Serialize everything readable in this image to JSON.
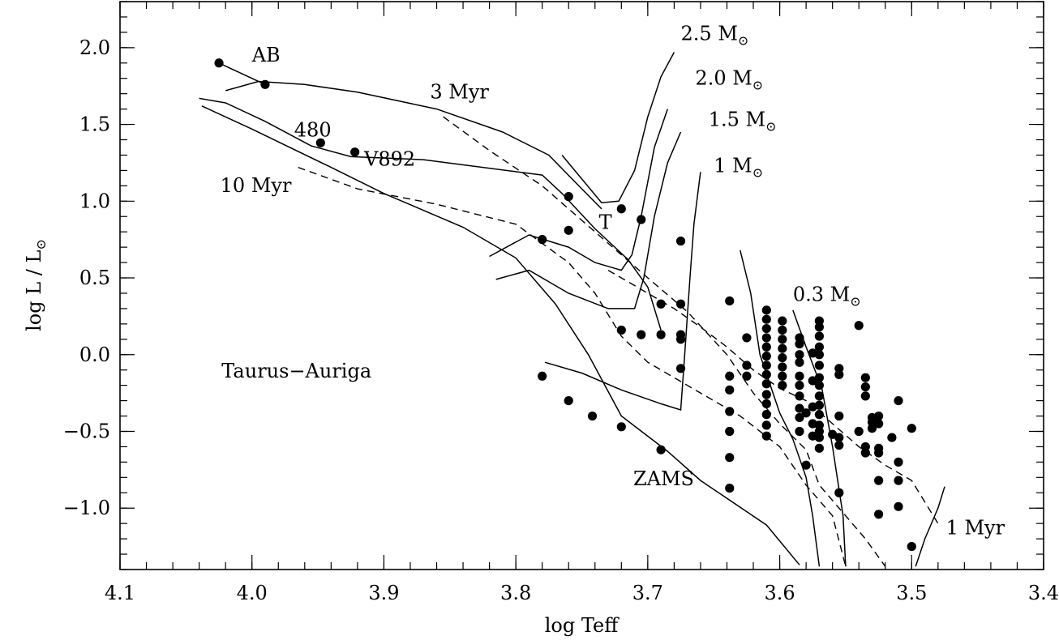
{
  "chart_data": {
    "type": "scatter",
    "title": "",
    "xlabel": "log Teff",
    "ylabel": "log L / L",
    "ylabel_symbol": "⊙",
    "xlim": [
      4.1,
      3.4
    ],
    "ylim": [
      -1.4,
      2.3
    ],
    "x_axis_reversed": true,
    "x_ticks": [
      4.1,
      4.0,
      3.9,
      3.8,
      3.7,
      3.6,
      3.5,
      3.4
    ],
    "x_tick_labels": [
      "4.1",
      "4.0",
      "3.9",
      "3.8",
      "3.7",
      "3.6",
      "3.5",
      "3.4"
    ],
    "x_minor_step": 0.02,
    "y_ticks": [
      -1.0,
      -0.5,
      0.0,
      0.5,
      1.0,
      1.5,
      2.0
    ],
    "y_tick_labels": [
      "−1.0",
      "−0.5",
      "0.0",
      "0.5",
      "1.0",
      "1.5",
      "2.0"
    ],
    "y_minor_step": 0.1,
    "grid": false,
    "annotations": [
      {
        "text": "AB",
        "x": 4.0,
        "y": 1.91
      },
      {
        "text": "480",
        "x": 3.968,
        "y": 1.42
      },
      {
        "text": "V892",
        "x": 3.915,
        "y": 1.23
      },
      {
        "text": "3 Myr",
        "x": 3.865,
        "y": 1.67
      },
      {
        "text": "10 Myr",
        "x": 4.024,
        "y": 1.06
      },
      {
        "text": "T",
        "x": 3.737,
        "y": 0.82
      },
      {
        "text": "Taurus−Auriga",
        "x": 4.023,
        "y": -0.15
      },
      {
        "text": "ZAMS",
        "x": 3.711,
        "y": -0.85
      },
      {
        "text": "1 Myr",
        "x": 3.474,
        "y": -1.17
      },
      {
        "text": "2.5 M",
        "x": 3.675,
        "y": 2.05,
        "symbol": "⊙"
      },
      {
        "text": "2.0 M",
        "x": 3.664,
        "y": 1.76,
        "symbol": "⊙"
      },
      {
        "text": "1.5 M",
        "x": 3.654,
        "y": 1.49,
        "symbol": "⊙"
      },
      {
        "text": "1 M",
        "x": 3.65,
        "y": 1.19,
        "symbol": "⊙"
      },
      {
        "text": "0.3 M",
        "x": 3.59,
        "y": 0.35,
        "symbol": "⊙"
      }
    ],
    "series": [
      {
        "type": "scatter",
        "points": [
          [
            4.025,
            1.9
          ],
          [
            3.99,
            1.76
          ],
          [
            3.948,
            1.38
          ],
          [
            3.922,
            1.32
          ],
          [
            3.76,
            1.03
          ],
          [
            3.72,
            0.95
          ],
          [
            3.705,
            0.88
          ],
          [
            3.76,
            0.81
          ],
          [
            3.78,
            0.75
          ],
          [
            3.675,
            0.74
          ],
          [
            3.69,
            0.33
          ],
          [
            3.675,
            0.33
          ],
          [
            3.638,
            0.35
          ],
          [
            3.72,
            0.16
          ],
          [
            3.705,
            0.13
          ],
          [
            3.69,
            0.13
          ],
          [
            3.675,
            0.13
          ],
          [
            3.675,
            0.1
          ],
          [
            3.675,
            -0.09
          ],
          [
            3.78,
            -0.14
          ],
          [
            3.76,
            -0.3
          ],
          [
            3.742,
            -0.4
          ],
          [
            3.72,
            -0.47
          ],
          [
            3.69,
            -0.62
          ],
          [
            3.638,
            -0.14
          ],
          [
            3.638,
            -0.23
          ],
          [
            3.638,
            -0.37
          ],
          [
            3.638,
            -0.5
          ],
          [
            3.638,
            -0.67
          ],
          [
            3.638,
            -0.87
          ],
          [
            3.625,
            0.11
          ],
          [
            3.625,
            -0.07
          ],
          [
            3.625,
            -0.14
          ],
          [
            3.61,
            0.29
          ],
          [
            3.61,
            0.23
          ],
          [
            3.61,
            0.17
          ],
          [
            3.61,
            0.11
          ],
          [
            3.61,
            0.05
          ],
          [
            3.61,
            -0.01
          ],
          [
            3.61,
            -0.07
          ],
          [
            3.61,
            -0.13
          ],
          [
            3.61,
            -0.19
          ],
          [
            3.61,
            -0.26
          ],
          [
            3.61,
            -0.32
          ],
          [
            3.61,
            -0.39
          ],
          [
            3.61,
            -0.46
          ],
          [
            3.61,
            -0.53
          ],
          [
            3.598,
            0.22
          ],
          [
            3.598,
            0.16
          ],
          [
            3.598,
            0.1
          ],
          [
            3.598,
            0.04
          ],
          [
            3.598,
            -0.02
          ],
          [
            3.598,
            -0.08
          ],
          [
            3.598,
            -0.14
          ],
          [
            3.598,
            -0.2
          ],
          [
            3.585,
            0.11
          ],
          [
            3.585,
            0.07
          ],
          [
            3.585,
            0.0
          ],
          [
            3.585,
            -0.05
          ],
          [
            3.585,
            -0.14
          ],
          [
            3.585,
            -0.2
          ],
          [
            3.585,
            -0.27
          ],
          [
            3.585,
            -0.35
          ],
          [
            3.585,
            -0.41
          ],
          [
            3.585,
            -0.5
          ],
          [
            3.58,
            -0.38
          ],
          [
            3.58,
            -0.72
          ],
          [
            3.57,
            0.22
          ],
          [
            3.57,
            0.18
          ],
          [
            3.57,
            0.12
          ],
          [
            3.57,
            0.05
          ],
          [
            3.57,
            0.0
          ],
          [
            3.57,
            -0.07
          ],
          [
            3.57,
            -0.15
          ],
          [
            3.57,
            -0.2
          ],
          [
            3.57,
            -0.27
          ],
          [
            3.57,
            -0.33
          ],
          [
            3.57,
            -0.39
          ],
          [
            3.57,
            -0.46
          ],
          [
            3.57,
            -0.5
          ],
          [
            3.57,
            -0.54
          ],
          [
            3.57,
            -0.61
          ],
          [
            3.575,
            0.01
          ],
          [
            3.575,
            -0.17
          ],
          [
            3.575,
            -0.34
          ],
          [
            3.575,
            -0.45
          ],
          [
            3.575,
            -0.53
          ],
          [
            3.56,
            -0.52
          ],
          [
            3.555,
            -0.4
          ],
          [
            3.555,
            -0.09
          ],
          [
            3.555,
            -0.13
          ],
          [
            3.555,
            -0.54
          ],
          [
            3.555,
            -0.59
          ],
          [
            3.555,
            -0.9
          ],
          [
            3.54,
            0.19
          ],
          [
            3.54,
            -0.5
          ],
          [
            3.535,
            -0.15
          ],
          [
            3.535,
            -0.21
          ],
          [
            3.535,
            -0.27
          ],
          [
            3.535,
            -0.6
          ],
          [
            3.535,
            -0.64
          ],
          [
            3.53,
            -0.41
          ],
          [
            3.53,
            -0.44
          ],
          [
            3.53,
            -0.48
          ],
          [
            3.525,
            -0.4
          ],
          [
            3.525,
            -0.45
          ],
          [
            3.525,
            -0.61
          ],
          [
            3.525,
            -0.64
          ],
          [
            3.525,
            -0.82
          ],
          [
            3.525,
            -1.04
          ],
          [
            3.515,
            -0.54
          ],
          [
            3.51,
            -0.3
          ],
          [
            3.51,
            -0.7
          ],
          [
            3.51,
            -0.82
          ],
          [
            3.51,
            -0.99
          ],
          [
            3.5,
            -0.48
          ],
          [
            3.5,
            -1.25
          ]
        ]
      },
      {
        "name": "3 Myr",
        "type": "line",
        "style": "solid",
        "points": [
          [
            4.02,
            1.72
          ],
          [
            3.995,
            1.78
          ],
          [
            3.96,
            1.76
          ],
          [
            3.92,
            1.71
          ],
          [
            3.86,
            1.6
          ],
          [
            3.81,
            1.45
          ],
          [
            3.775,
            1.3
          ],
          [
            3.75,
            1.08
          ],
          [
            3.735,
            0.95
          ]
        ]
      },
      {
        "name": "10 Myr",
        "type": "line",
        "style": "solid",
        "points": [
          [
            4.04,
            1.67
          ],
          [
            4.02,
            1.64
          ],
          [
            3.99,
            1.52
          ],
          [
            3.955,
            1.36
          ],
          [
            3.925,
            1.29
          ],
          [
            3.87,
            1.27
          ],
          [
            3.78,
            1.17
          ],
          [
            3.765,
            1.05
          ],
          [
            3.74,
            0.82
          ],
          [
            3.715,
            0.62
          ],
          [
            3.7,
            0.44
          ],
          [
            3.69,
            0.16
          ]
        ]
      },
      {
        "name": "ZAMS",
        "type": "line",
        "style": "solid",
        "points": [
          [
            4.038,
            1.62
          ],
          [
            4.0,
            1.47
          ],
          [
            3.94,
            1.22
          ],
          [
            3.9,
            1.05
          ],
          [
            3.84,
            0.83
          ],
          [
            3.8,
            0.63
          ],
          [
            3.77,
            0.33
          ],
          [
            3.745,
            0.0
          ],
          [
            3.72,
            -0.4
          ],
          [
            3.685,
            -0.63
          ],
          [
            3.66,
            -0.82
          ],
          [
            3.61,
            -1.11
          ],
          [
            3.585,
            -1.37
          ]
        ]
      },
      {
        "name": "2.5 M",
        "type": "line",
        "style": "solid",
        "points": [
          [
            3.765,
            1.3
          ],
          [
            3.735,
            0.99
          ],
          [
            3.722,
            1.0
          ],
          [
            3.71,
            1.2
          ],
          [
            3.7,
            1.55
          ],
          [
            3.69,
            1.81
          ],
          [
            3.68,
            1.97
          ]
        ]
      },
      {
        "name": "2.0 M",
        "type": "line",
        "style": "solid",
        "points": [
          [
            3.82,
            0.64
          ],
          [
            3.79,
            0.78
          ],
          [
            3.76,
            0.7
          ],
          [
            3.74,
            0.6
          ],
          [
            3.72,
            0.55
          ],
          [
            3.712,
            0.65
          ],
          [
            3.705,
            0.9
          ],
          [
            3.695,
            1.35
          ],
          [
            3.685,
            1.6
          ]
        ]
      },
      {
        "name": "1.5 M",
        "type": "line",
        "style": "solid",
        "points": [
          [
            3.815,
            0.49
          ],
          [
            3.79,
            0.55
          ],
          [
            3.76,
            0.4
          ],
          [
            3.73,
            0.3
          ],
          [
            3.71,
            0.3
          ],
          [
            3.703,
            0.5
          ],
          [
            3.695,
            0.9
          ],
          [
            3.685,
            1.25
          ],
          [
            3.675,
            1.45
          ]
        ]
      },
      {
        "name": "1 M",
        "type": "line",
        "style": "solid",
        "points": [
          [
            3.778,
            -0.05
          ],
          [
            3.75,
            -0.12
          ],
          [
            3.72,
            -0.23
          ],
          [
            3.69,
            -0.32
          ],
          [
            3.675,
            -0.36
          ],
          [
            3.672,
            0.0
          ],
          [
            3.668,
            0.5
          ],
          [
            3.665,
            0.85
          ],
          [
            3.66,
            1.19
          ]
        ]
      },
      {
        "name": "0.3 M",
        "type": "line",
        "style": "solid",
        "points": [
          [
            3.63,
            0.68
          ],
          [
            3.622,
            0.4
          ],
          [
            3.615,
            0.0
          ],
          [
            3.6,
            -0.38
          ],
          [
            3.59,
            -0.55
          ],
          [
            3.58,
            -0.8
          ],
          [
            3.575,
            -1.05
          ],
          [
            3.57,
            -1.38
          ]
        ]
      },
      {
        "name": "0.3 M right",
        "type": "line",
        "style": "solid",
        "points": [
          [
            3.59,
            0.29
          ],
          [
            3.58,
            0.05
          ],
          [
            3.568,
            -0.22
          ],
          [
            3.56,
            -0.6
          ],
          [
            3.552,
            -1.05
          ],
          [
            3.55,
            -1.38
          ]
        ]
      },
      {
        "name": "1 Myr",
        "type": "line",
        "style": "solid",
        "points": [
          [
            3.497,
            -1.38
          ],
          [
            3.49,
            -1.2
          ],
          [
            3.48,
            -1.0
          ],
          [
            3.475,
            -0.86
          ]
        ]
      },
      {
        "name": "3 Myr isochrone",
        "type": "line",
        "style": "dashed",
        "points": [
          [
            3.855,
            1.55
          ],
          [
            3.82,
            1.33
          ],
          [
            3.78,
            1.1
          ],
          [
            3.74,
            0.8
          ],
          [
            3.7,
            0.5
          ],
          [
            3.67,
            0.28
          ],
          [
            3.64,
            0.0
          ],
          [
            3.62,
            -0.25
          ],
          [
            3.6,
            -0.45
          ],
          [
            3.58,
            -0.62
          ],
          [
            3.57,
            -0.85
          ],
          [
            3.55,
            -1.05
          ],
          [
            3.535,
            -1.2
          ],
          [
            3.52,
            -1.38
          ]
        ]
      },
      {
        "name": "10 Myr isochrone",
        "type": "line",
        "style": "dashed",
        "points": [
          [
            3.965,
            1.22
          ],
          [
            3.92,
            1.08
          ],
          [
            3.86,
            0.98
          ],
          [
            3.8,
            0.85
          ],
          [
            3.76,
            0.6
          ],
          [
            3.74,
            0.4
          ],
          [
            3.72,
            0.12
          ],
          [
            3.7,
            -0.05
          ],
          [
            3.66,
            -0.25
          ],
          [
            3.63,
            -0.4
          ],
          [
            3.6,
            -0.6
          ],
          [
            3.58,
            -0.85
          ],
          [
            3.56,
            -1.05
          ],
          [
            3.55,
            -1.38
          ]
        ]
      },
      {
        "name": "1 Myr isochrone",
        "type": "line",
        "style": "dashed",
        "points": [
          [
            3.73,
            0.55
          ],
          [
            3.71,
            0.45
          ],
          [
            3.68,
            0.3
          ],
          [
            3.66,
            0.18
          ],
          [
            3.64,
            0.05
          ],
          [
            3.62,
            -0.1
          ],
          [
            3.6,
            -0.22
          ],
          [
            3.58,
            -0.3
          ],
          [
            3.56,
            -0.45
          ],
          [
            3.54,
            -0.6
          ],
          [
            3.52,
            -0.72
          ],
          [
            3.5,
            -0.82
          ],
          [
            3.48,
            -1.1
          ]
        ]
      }
    ]
  }
}
